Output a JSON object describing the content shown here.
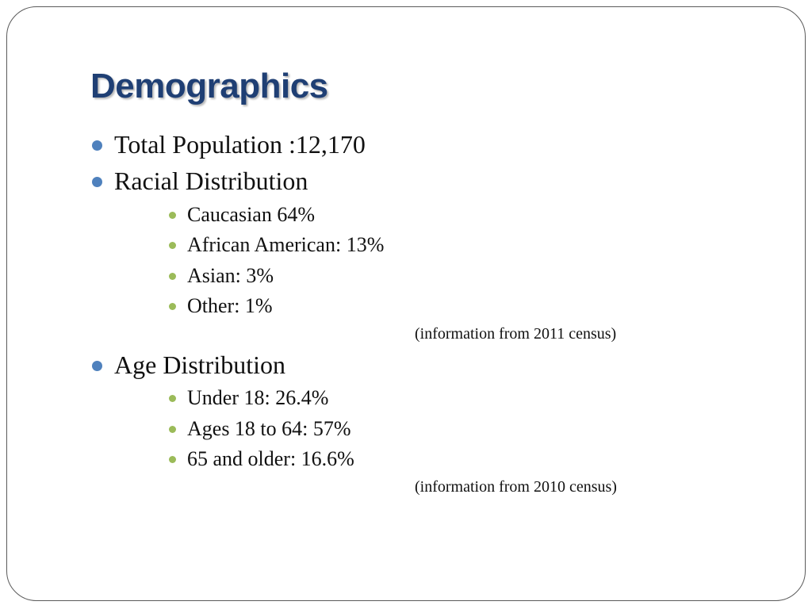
{
  "slide": {
    "title": "Demographics",
    "items": {
      "total_population": "Total Population :12,170",
      "racial_distribution": {
        "label": "Racial Distribution",
        "sub": [
          "Caucasian 64%",
          "African American: 13%",
          "Asian: 3%",
          "Other: 1%"
        ],
        "source": "(information from 2011 census)"
      },
      "age_distribution": {
        "label": "Age Distribution",
        "sub": [
          "Under 18:  26.4%",
          "Ages 18 to 64: 57%",
          "65 and older: 16.6%"
        ],
        "source": "(information from 2010 census)"
      }
    }
  },
  "colors": {
    "title": "#1f3f74",
    "primary_bullet": "#4f81bd",
    "secondary_bullet": "#9bbb59",
    "frame_border": "#5a5a5a"
  },
  "icons": {
    "primary_bullet": "bullet-dot-icon",
    "secondary_bullet": "bullet-dot-icon"
  }
}
